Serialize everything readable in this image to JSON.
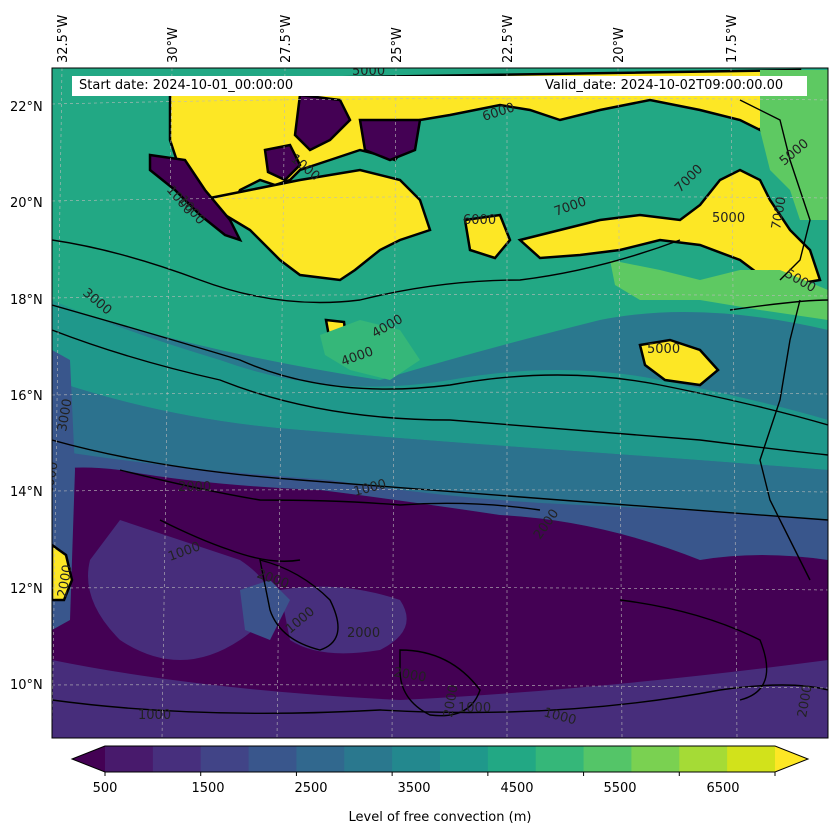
{
  "map": {
    "start_date_text": "Start date: 2024-10-01_00:00:00",
    "valid_date_text": "Valid_date: 2024-10-02T09:00:00.00",
    "longitude_labels": [
      "32.5°W",
      "30°W",
      "27.5°W",
      "25°W",
      "22.5°W",
      "20°W",
      "17.5°W"
    ],
    "latitude_labels": [
      "22°N",
      "20°N",
      "18°N",
      "16°N",
      "14°N",
      "12°N",
      "10°N"
    ],
    "contour_labels": [
      "6000",
      "5000",
      "7000",
      "6000",
      "7000",
      "5000",
      "5000",
      "5000",
      "7000",
      "3000",
      "4000",
      "4000",
      "5000",
      "3000",
      "2000",
      "1000",
      "2000",
      "1000",
      "2000",
      "2000",
      "1000",
      "2000",
      "2000",
      "1000",
      "1000",
      "2000",
      "1000",
      "1000",
      "1000",
      "1000",
      "2000",
      "2000"
    ],
    "colors": {
      "extend_high": "#fde725",
      "very_high": "#fde725",
      "high": "#5ec962",
      "mid_high": "#35b779",
      "mid": "#21918c",
      "mid_low": "#2c728e",
      "low": "#3b528b",
      "very_low": "#472d7b",
      "lowest": "#440154"
    }
  },
  "colorbar": {
    "title": "Level of free convection (m)",
    "tick_labels": [
      "500",
      "1500",
      "2500",
      "3500",
      "4500",
      "5500",
      "6500"
    ],
    "levels": [
      500,
      1000,
      1500,
      2000,
      2500,
      3000,
      3500,
      4000,
      4500,
      5000,
      5500,
      6000,
      6500,
      7000
    ],
    "colors": [
      "#440154",
      "#481a6c",
      "#472f7d",
      "#414487",
      "#39568c",
      "#31688e",
      "#2a788e",
      "#23888e",
      "#1f988b",
      "#22a884",
      "#35b779",
      "#54c568",
      "#7ad151",
      "#a5db36",
      "#d2e21b",
      "#fde725"
    ]
  }
}
